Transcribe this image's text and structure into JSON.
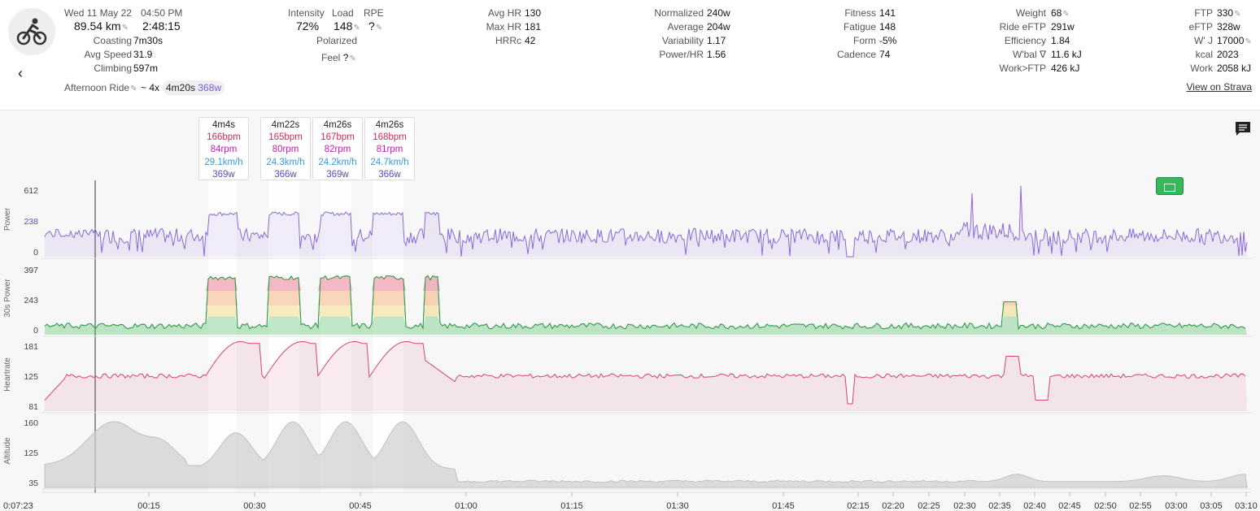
{
  "activity": {
    "date": "Wed 11 May 22",
    "time": "04:50 PM",
    "distance": "89.54 km",
    "duration": "2:48:15",
    "name": "Afternoon Ride",
    "interval_summary": "~ 4x",
    "interval_duration": "4m20s",
    "interval_power": "368w"
  },
  "stats": {
    "coasting_label": "Coasting",
    "coasting": "7m30s",
    "avg_speed_label": "Avg Speed",
    "avg_speed": "31.9",
    "climbing_label": "Climbing",
    "climbing": "597m",
    "intensity_label": "Intensity",
    "intensity": "72%",
    "load_label": "Load",
    "load": "148",
    "rpe_label": "RPE",
    "rpe": "?",
    "polarized": "Polarized",
    "feel_label": "Feel",
    "feel": "?",
    "avg_hr_label": "Avg HR",
    "avg_hr": "130",
    "max_hr_label": "Max HR",
    "max_hr": "181",
    "hrrc_label": "HRRc",
    "hrrc": "42",
    "normalized_label": "Normalized",
    "normalized": "240w",
    "average_label": "Average",
    "average": "204w",
    "variability_label": "Variability",
    "variability": "1.17",
    "power_hr_label": "Power/HR",
    "power_hr": "1.56",
    "fitness_label": "Fitness",
    "fitness": "141",
    "fatigue_label": "Fatigue",
    "fatigue": "148",
    "form_label": "Form",
    "form": "-5%",
    "cadence_label": "Cadence",
    "cadence": "74",
    "weight_label": "Weight",
    "weight": "68",
    "ride_eftp_label": "Ride eFTP",
    "ride_eftp": "291w",
    "efficiency_label": "Efficiency",
    "efficiency": "1.84",
    "wbal_label": "W'bal ∇",
    "wbal": "11.6 kJ",
    "work_ftp_label": "Work>FTP",
    "work_ftp": "426 kJ",
    "ftp_label": "FTP",
    "ftp": "330",
    "eftp_label": "eFTP",
    "eftp": "328w",
    "wj_label": "W' J",
    "wj": "17000",
    "kcal_label": "kcal",
    "kcal": "2023",
    "work_label": "Work",
    "work": "2058 kJ"
  },
  "links": {
    "strava": "View on Strava"
  },
  "intervals": [
    {
      "duration": "4m4s",
      "hr": "166bpm",
      "cadence": "84rpm",
      "speed": "29.1km/h",
      "power": "369w"
    },
    {
      "duration": "4m22s",
      "hr": "165bpm",
      "cadence": "80rpm",
      "speed": "24.3km/h",
      "power": "366w"
    },
    {
      "duration": "4m26s",
      "hr": "167bpm",
      "cadence": "82rpm",
      "speed": "24.2km/h",
      "power": "369w"
    },
    {
      "duration": "4m26s",
      "hr": "168bpm",
      "cadence": "81rpm",
      "speed": "24.7km/h",
      "power": "366w"
    }
  ],
  "colors": {
    "power": "#8a6ad6",
    "heartrate": "#d9436e",
    "altitude": "#cfcfcf",
    "z1": "#4dbd62",
    "z2": "#f2c94c",
    "z3": "#f08a3c",
    "z4": "#e6395d"
  },
  "chart_data": [
    {
      "type": "line",
      "title": "",
      "ylabel": "Power",
      "yticks": [
        "612",
        "238",
        "0"
      ],
      "x": [
        "00:15",
        "00:30",
        "00:45",
        "01:00",
        "01:15",
        "01:30",
        "01:45",
        "02:15",
        "02:20",
        "02:25",
        "02:30",
        "02:35",
        "02:40",
        "02:45",
        "02:50",
        "02:55",
        "03:00",
        "03:05",
        "03:10"
      ],
      "series": []
    },
    {
      "type": "area",
      "ylabel": "30s Power",
      "yticks": [
        "397",
        "243",
        "0"
      ],
      "series": []
    },
    {
      "type": "line",
      "ylabel": "Heartrate",
      "yticks": [
        "181",
        "125",
        "81"
      ],
      "series": []
    },
    {
      "type": "area",
      "ylabel": "Altitude",
      "yticks": [
        "160",
        "125",
        "35"
      ],
      "series": []
    }
  ],
  "axis": {
    "start": "0:07:23",
    "ticks": [
      "00:15",
      "00:30",
      "00:45",
      "01:00",
      "01:15",
      "01:30",
      "01:45",
      "02:15",
      "02:20",
      "02:25",
      "02:30",
      "02:35",
      "02:40",
      "02:45",
      "02:50",
      "02:55",
      "03:00",
      "03:05",
      "03:10"
    ]
  }
}
